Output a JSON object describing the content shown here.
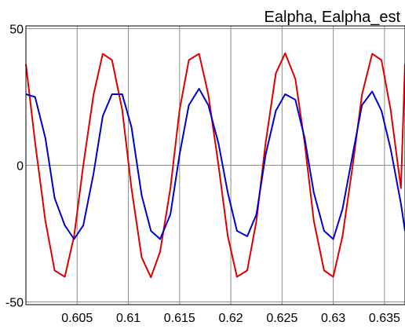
{
  "chart_data": {
    "type": "line",
    "title": "Ealpha, Ealpha_est",
    "xlabel": "",
    "ylabel": "",
    "xlim": [
      0.6,
      0.637
    ],
    "ylim": [
      -51,
      51
    ],
    "grid": true,
    "legend": "none",
    "x_ticks": [
      {
        "value": 0.605,
        "label": "0.605"
      },
      {
        "value": 0.61,
        "label": "0.61"
      },
      {
        "value": 0.615,
        "label": "0.615"
      },
      {
        "value": 0.62,
        "label": "0.62"
      },
      {
        "value": 0.625,
        "label": "0.625"
      },
      {
        "value": 0.63,
        "label": "0.63"
      },
      {
        "value": 0.635,
        "label": "0.635"
      }
    ],
    "y_ticks": [
      {
        "value": 50,
        "label": "50"
      },
      {
        "value": 0,
        "label": "0"
      },
      {
        "value": -50,
        "label": "-50"
      }
    ],
    "series": [
      {
        "color": "#dd0000",
        "x": [
          0.6,
          0.6009,
          0.6019,
          0.6028,
          0.6038,
          0.6047,
          0.6056,
          0.6066,
          0.6075,
          0.6084,
          0.6094,
          0.6103,
          0.6113,
          0.6122,
          0.6131,
          0.6141,
          0.615,
          0.6159,
          0.6169,
          0.6178,
          0.6188,
          0.6197,
          0.6206,
          0.6216,
          0.6225,
          0.6234,
          0.6244,
          0.6253,
          0.6263,
          0.6272,
          0.6281,
          0.6291,
          0.63,
          0.6309,
          0.6319,
          0.6328,
          0.6338,
          0.6347,
          0.6356,
          0.6366,
          0.637
        ],
        "y": [
          37,
          8.4,
          -20.3,
          -38.5,
          -40.8,
          -25.9,
          0,
          25.9,
          40.8,
          38.5,
          20.3,
          -8.4,
          -33.7,
          -41,
          -31.6,
          -8.4,
          20.3,
          38.5,
          40.8,
          25.9,
          0,
          -25.9,
          -40.8,
          -38.5,
          -20.3,
          8.4,
          33.7,
          41,
          31.6,
          8.4,
          -20.3,
          -38.5,
          -40.8,
          -25.9,
          0,
          25.9,
          40.8,
          38.5,
          20.3,
          -8.4,
          37
        ]
      },
      {
        "color": "#0000cc",
        "x": [
          0.6,
          0.6009,
          0.6019,
          0.6028,
          0.6038,
          0.6047,
          0.6056,
          0.6066,
          0.6075,
          0.6084,
          0.6094,
          0.6103,
          0.6113,
          0.6122,
          0.6131,
          0.6141,
          0.615,
          0.6159,
          0.6169,
          0.6178,
          0.6188,
          0.6197,
          0.6206,
          0.6216,
          0.6225,
          0.6234,
          0.6244,
          0.6253,
          0.6263,
          0.6272,
          0.6281,
          0.6291,
          0.63,
          0.6309,
          0.6319,
          0.6328,
          0.6338,
          0.6347,
          0.6356,
          0.6366,
          0.637
        ],
        "y": [
          26,
          25,
          10,
          -12,
          -22,
          -27,
          -22,
          -3,
          18,
          26,
          26,
          14,
          -11,
          -24,
          -27,
          -18,
          4,
          22,
          28,
          22,
          8,
          -10,
          -24,
          -26,
          -18,
          4,
          20,
          26,
          24,
          10,
          -10,
          -24,
          -27,
          -16,
          4,
          22,
          27,
          20,
          6,
          -14,
          -24
        ]
      }
    ]
  }
}
